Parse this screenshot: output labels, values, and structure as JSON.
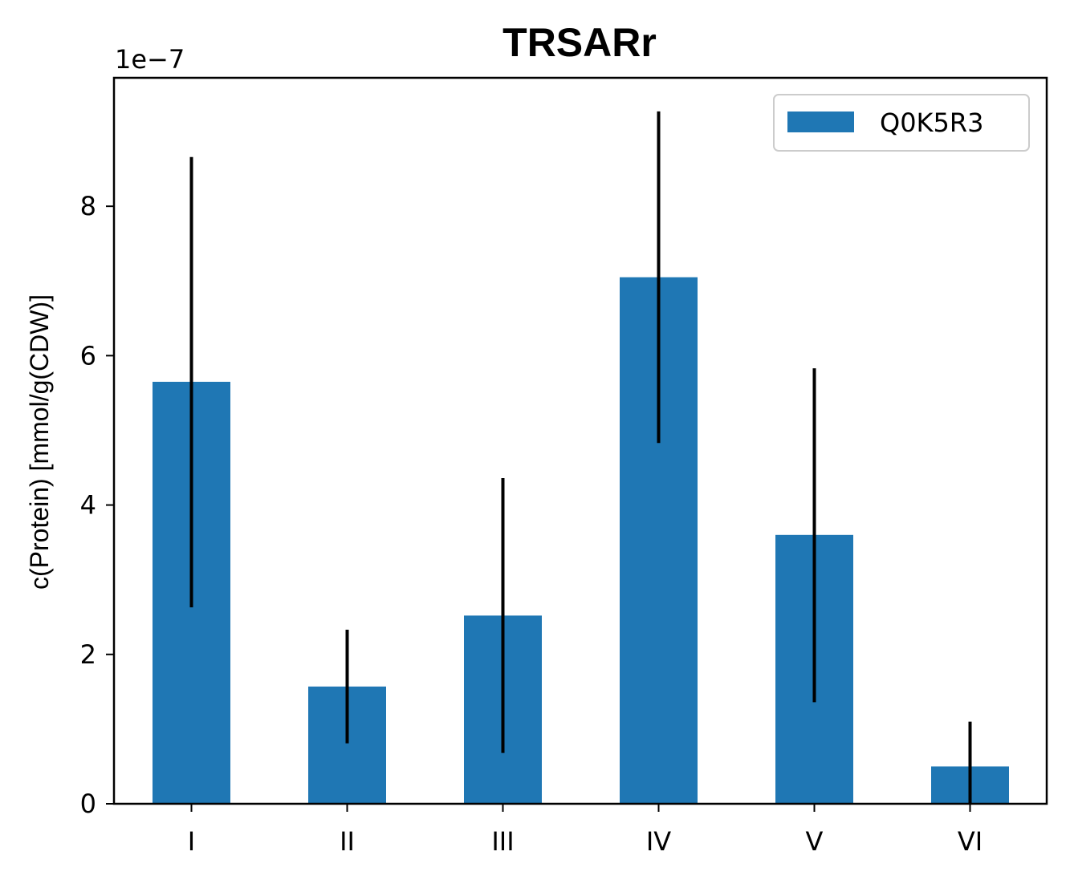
{
  "chart_data": {
    "type": "bar",
    "title": "TRSARr",
    "xlabel": "",
    "ylabel": "c(Protein) [mmol/g(CDW)]",
    "y_offset_label": "1e−7",
    "categories": [
      "I",
      "II",
      "III",
      "IV",
      "V",
      "VI"
    ],
    "series": [
      {
        "name": "Q0K5R3",
        "color": "#1f77b4",
        "values": [
          5.65,
          1.57,
          2.52,
          7.05,
          3.6,
          0.5
        ],
        "error_low": [
          2.63,
          0.81,
          0.68,
          4.83,
          1.36,
          0.0
        ],
        "error_high": [
          8.66,
          2.33,
          4.36,
          9.27,
          5.83,
          1.1
        ]
      }
    ],
    "yticks": [
      0,
      2,
      4,
      6,
      8
    ],
    "ylim": [
      0,
      9.72
    ],
    "legend_position": "top-right",
    "grid": false
  }
}
